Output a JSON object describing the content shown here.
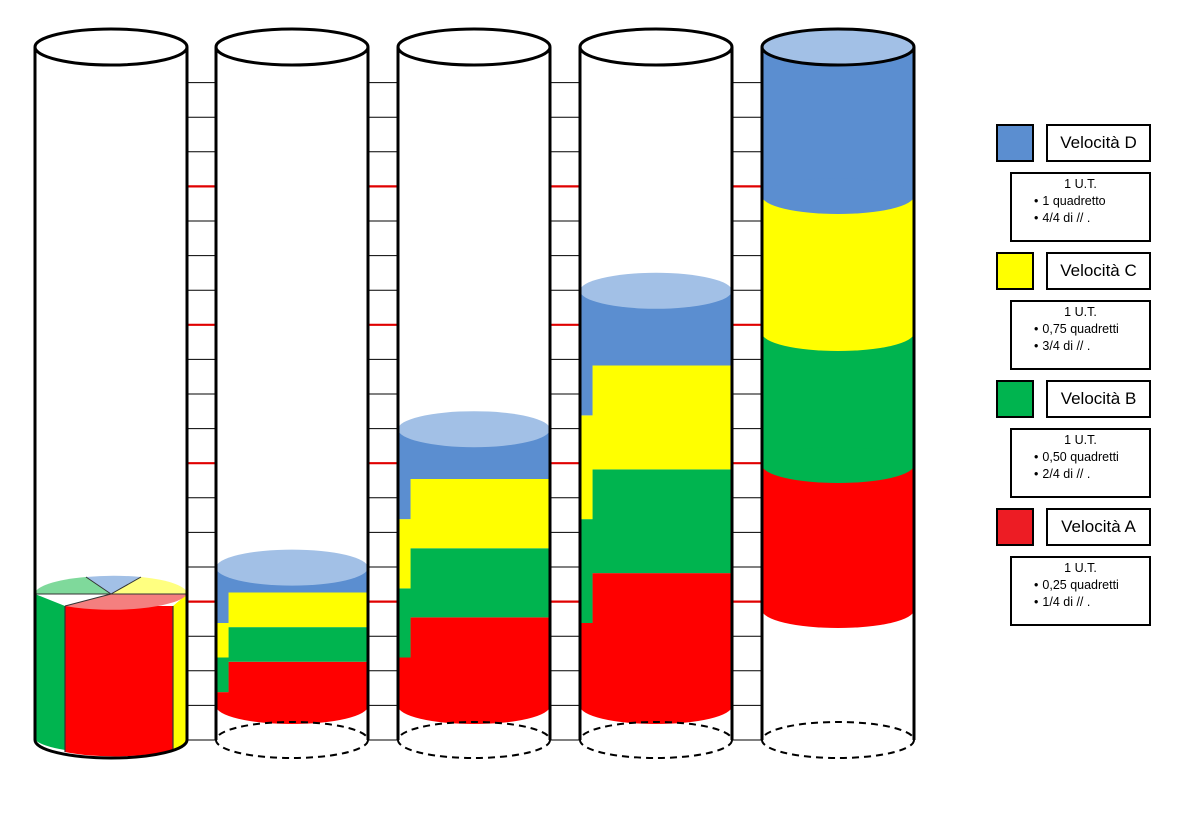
{
  "colors": {
    "blue": "#5b8ed0",
    "blue_top": "#a2c0e6",
    "yellow": "#ffff00",
    "green": "#00b44f",
    "red": "#ff0000",
    "tick_red": "#e00000"
  },
  "tubes": [
    {
      "id": "tube-1",
      "units": 0
    },
    {
      "id": "tube-2",
      "units": 1
    },
    {
      "id": "tube-3",
      "units": 2
    },
    {
      "id": "tube-4",
      "units": 3
    },
    {
      "id": "tube-5",
      "units": 4
    }
  ],
  "legend": [
    {
      "key": "D",
      "label": "Velocità D",
      "color": "#5b8ed0",
      "ut": "1 U.T.",
      "line1": "1 quadretto",
      "line2": "4/4 di  //    ."
    },
    {
      "key": "C",
      "label": "Velocità C",
      "color": "#ffff00",
      "ut": "1 U.T.",
      "line1": "0,75 quadretti",
      "line2": "3/4 di   //    ."
    },
    {
      "key": "B",
      "label": "Velocità B",
      "color": "#00b44f",
      "ut": "1 U.T.",
      "line1": "0,50 quadretti",
      "line2": "2/4 di   //    ."
    },
    {
      "key": "A",
      "label": "Velocità A",
      "color": "#ed1c24",
      "ut": "1 U.T.",
      "line1": "0,25 quadretti",
      "line2": "1/4 di   //    ."
    }
  ]
}
